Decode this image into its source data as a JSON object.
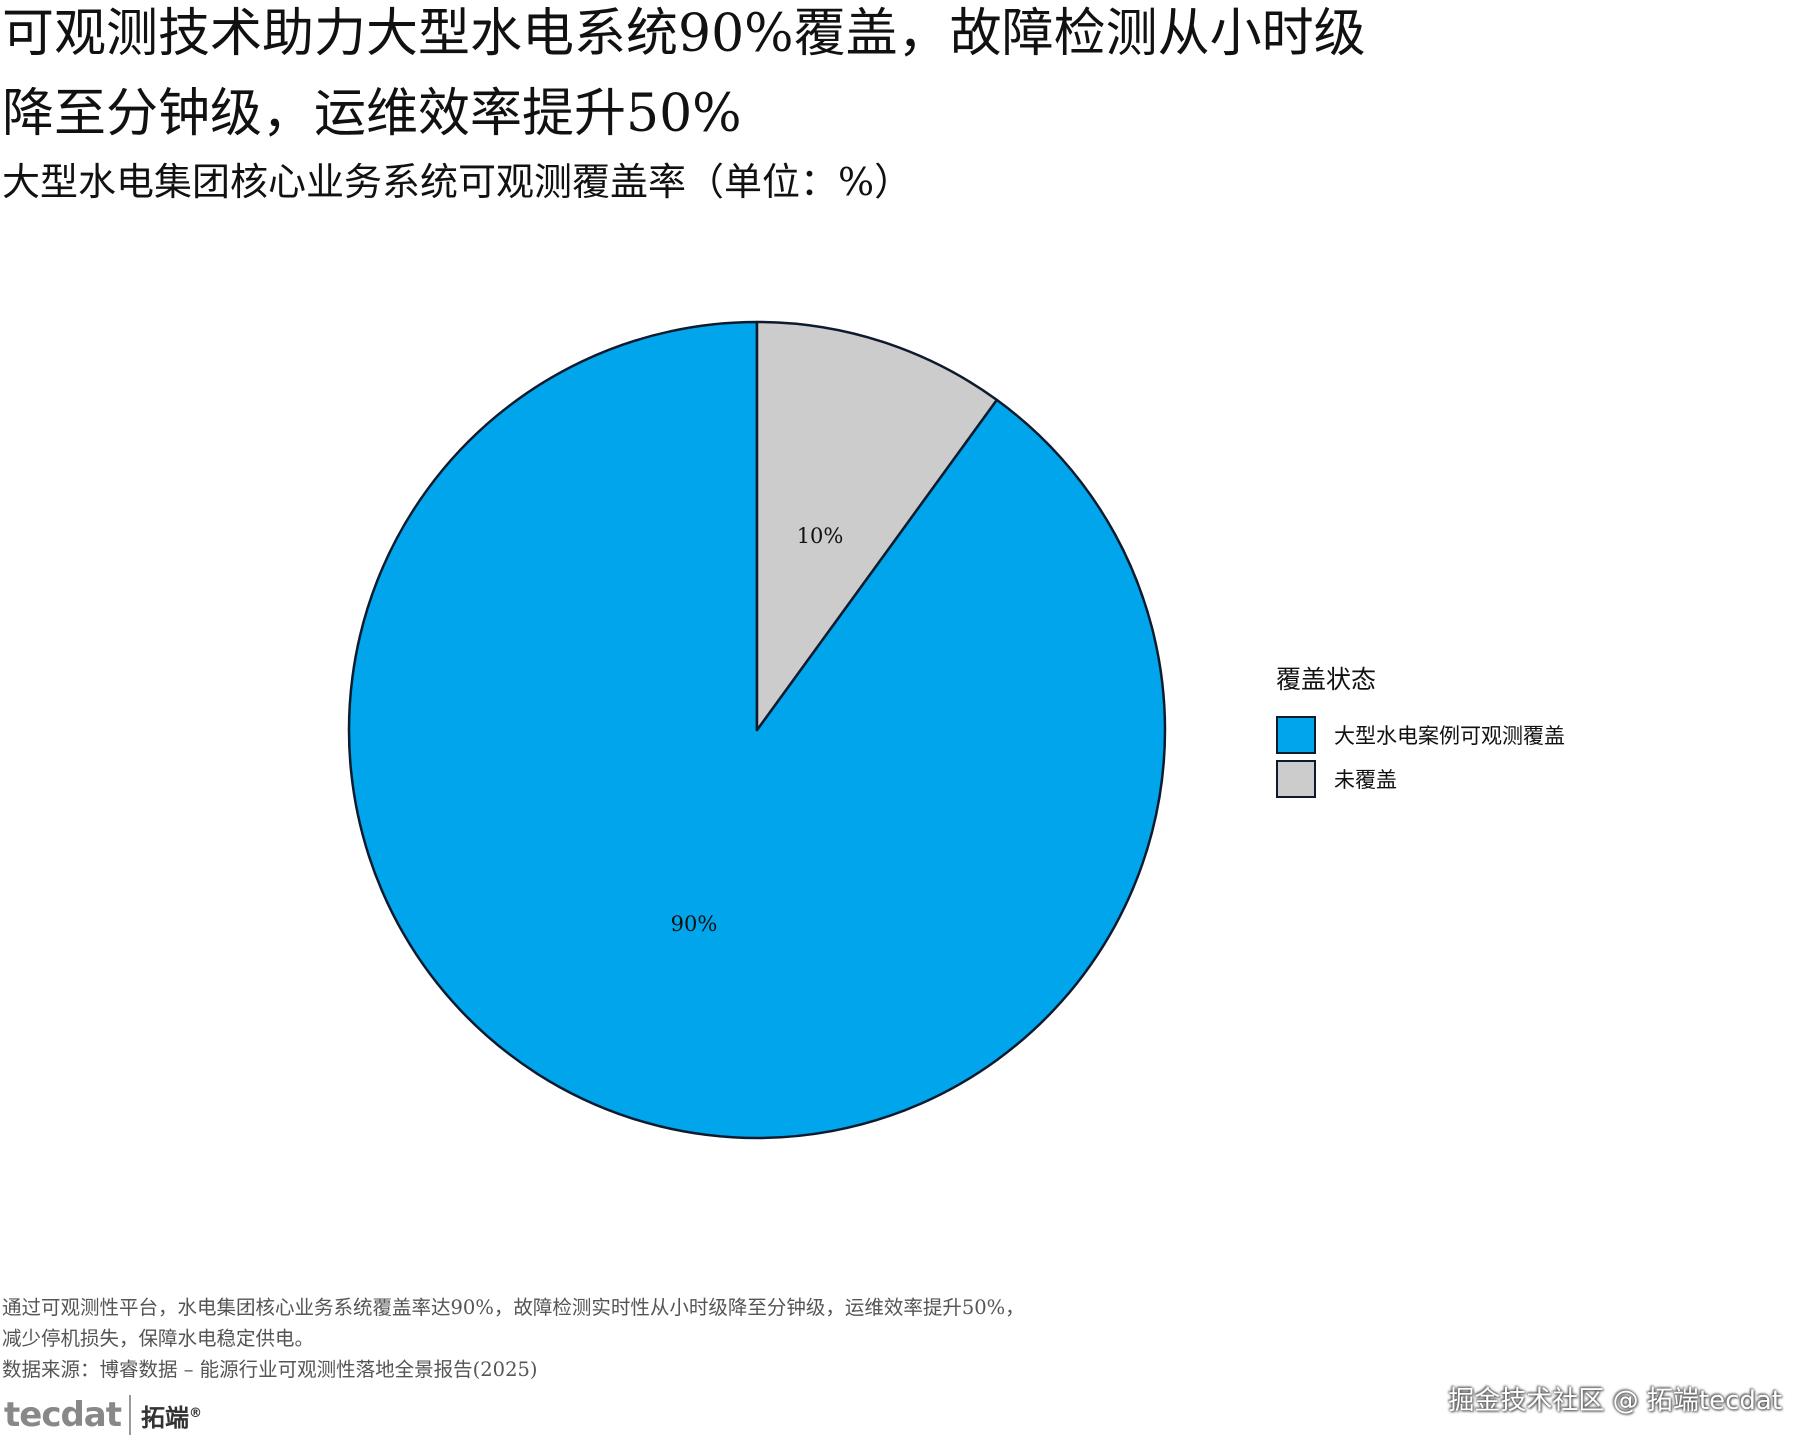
{
  "title_lines": [
    "可观测技术助力大型水电系统90%覆盖，故障检测从小时级",
    "降至分钟级，运维效率提升50%"
  ],
  "subtitle": "大型水电集团核心业务系统可观测覆盖率（单位：%）",
  "chart_data": {
    "type": "pie",
    "slices": [
      {
        "name": "大型水电案例可观测覆盖",
        "value": 90,
        "label": "90%",
        "color": "#00a5ec"
      },
      {
        "name": "未覆盖",
        "value": 10,
        "label": "10%",
        "color": "#cccccc"
      }
    ],
    "legend": {
      "title": "覆盖状态",
      "placement": "right"
    },
    "start": "12 o'clock",
    "direction": "counterclockwise",
    "edge_color": "#0d1b2e"
  },
  "footer": {
    "lines": [
      "通过可观测性平台，水电集团核心业务系统覆盖率达90%，故障检测实时性从小时级降至分钟级，运维效率提升50%，",
      "减少停机损失，保障水电稳定供电。",
      "数据来源：博睿数据 – 能源行业可观测性落地全景报告(2025)"
    ]
  },
  "logo": {
    "word": "tecdat",
    "brand": "拓端",
    "mark": "®"
  },
  "watermark": "掘金技术社区 @ 拓端tecdat"
}
